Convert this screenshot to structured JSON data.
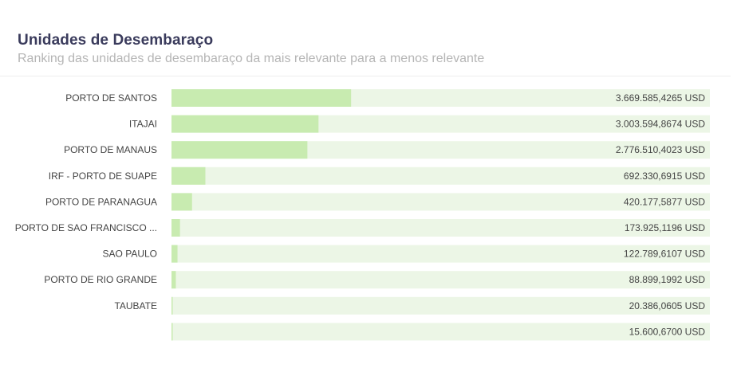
{
  "header": {
    "title": "Unidades de Desembaraço",
    "subtitle": "Ranking das unidades de desembaraço da mais relevante para a menos relevante"
  },
  "colors": {
    "bar_fill": "#c8ebb0",
    "track_fill": "#ecf6e6",
    "title_color": "#3a3b5c",
    "subtitle_color": "#b5b5b5",
    "label_color": "#444444"
  },
  "chart_data": {
    "type": "bar",
    "orientation": "horizontal",
    "title": "Unidades de Desembaraço",
    "subtitle": "Ranking das unidades de desembaraço da mais relevante para a menos relevante",
    "categories": [
      "PORTO DE SANTOS",
      "ITAJAI",
      "PORTO DE MANAUS",
      "IRF - PORTO DE SUAPE",
      "PORTO DE PARANAGUA",
      "PORTO DE SAO FRANCISCO ...",
      "SAO PAULO",
      "PORTO DE RIO GRANDE",
      "TAUBATE",
      ""
    ],
    "values": [
      3669585.4265,
      3003594.8674,
      2776510.4023,
      692330.6915,
      420177.5877,
      173925.1196,
      122789.6107,
      88899.1992,
      20386.0605,
      15600.67
    ],
    "value_labels": [
      "3.669.585,4265 USD",
      "3.003.594,8674 USD",
      "2.776.510,4023 USD",
      "692.330,6915 USD",
      "420.177,5877 USD",
      "173.925,1196 USD",
      "122.789,6107 USD",
      "88.899,1992 USD",
      "20.386,0605 USD",
      "15.600,6700 USD"
    ],
    "unit": "USD",
    "xlim": [
      0,
      11000000
    ],
    "grid": false,
    "legend": "none"
  }
}
